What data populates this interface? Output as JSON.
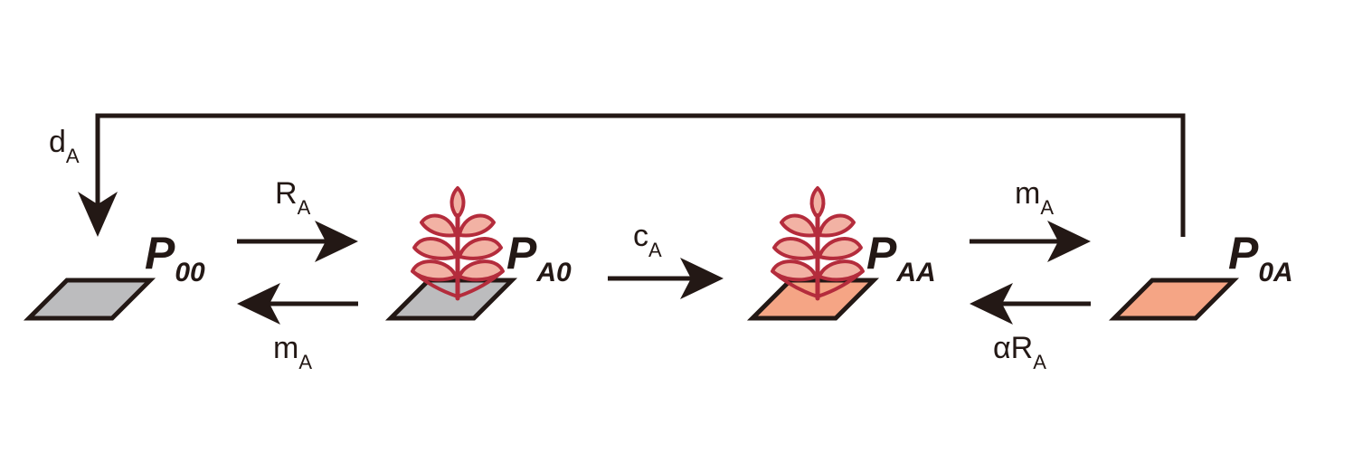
{
  "colors": {
    "ink": "#231815",
    "patch_empty": "#bcbcbe",
    "patch_occupied": "#f5a585",
    "plant_stroke": "#b42c3c",
    "plant_fill": "#f2b2a4"
  },
  "icons": {
    "patch": "parallelogram-patch-icon",
    "plant": "plant-icon"
  },
  "states": [
    {
      "id": "P00",
      "main": "P",
      "sub": "00",
      "patch_color": "patch_empty",
      "plant": false
    },
    {
      "id": "PA0",
      "main": "P",
      "sub": "A0",
      "patch_color": "patch_empty",
      "plant": true
    },
    {
      "id": "PAA",
      "main": "P",
      "sub": "AA",
      "patch_color": "patch_occupied",
      "plant": true
    },
    {
      "id": "P0A",
      "main": "P",
      "sub": "0A",
      "patch_color": "patch_occupied",
      "plant": false
    }
  ],
  "transitions": [
    {
      "from": "P00",
      "to": "PA0",
      "label_main": "R",
      "label_sub": "A"
    },
    {
      "from": "PA0",
      "to": "P00",
      "label_main": "m",
      "label_sub": "A"
    },
    {
      "from": "PA0",
      "to": "PAA",
      "label_main": "c",
      "label_sub": "A"
    },
    {
      "from": "PAA",
      "to": "P0A",
      "label_main": "m",
      "label_sub": "A"
    },
    {
      "from": "P0A",
      "to": "PAA",
      "label_main": "αR",
      "label_sub": "A"
    },
    {
      "from": "P0A",
      "to": "P00",
      "label_main": "d",
      "label_sub": "A"
    }
  ]
}
